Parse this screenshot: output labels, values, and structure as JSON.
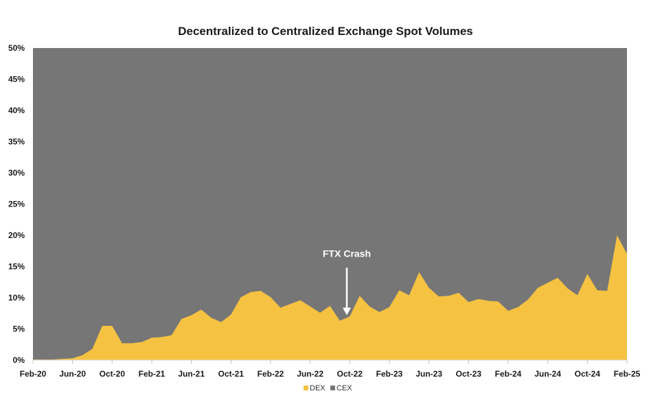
{
  "chart_data": {
    "type": "area",
    "title": "Decentralized to Centralized Exchange Spot Volumes",
    "xlabel": "",
    "ylabel": "",
    "ylim": [
      0,
      50
    ],
    "y_ticks": [
      "0%",
      "5%",
      "10%",
      "15%",
      "20%",
      "25%",
      "30%",
      "35%",
      "40%",
      "45%",
      "50%"
    ],
    "y_tick_values": [
      0,
      5,
      10,
      15,
      20,
      25,
      30,
      35,
      40,
      45,
      50
    ],
    "x_ticks": [
      "Feb-20",
      "Jun-20",
      "Oct-20",
      "Feb-21",
      "Jun-21",
      "Oct-21",
      "Feb-22",
      "Jun-22",
      "Oct-22",
      "Feb-23",
      "Jun-23",
      "Oct-23",
      "Feb-24",
      "Jun-24",
      "Oct-24",
      "Feb-25"
    ],
    "x_tick_index": [
      0,
      4,
      8,
      12,
      16,
      20,
      24,
      28,
      32,
      36,
      40,
      44,
      48,
      52,
      56,
      60
    ],
    "categories": [
      "Feb-20",
      "Mar-20",
      "Apr-20",
      "May-20",
      "Jun-20",
      "Jul-20",
      "Aug-20",
      "Sep-20",
      "Oct-20",
      "Nov-20",
      "Dec-20",
      "Jan-21",
      "Feb-21",
      "Mar-21",
      "Apr-21",
      "May-21",
      "Jun-21",
      "Jul-21",
      "Aug-21",
      "Sep-21",
      "Oct-21",
      "Nov-21",
      "Dec-21",
      "Jan-22",
      "Feb-22",
      "Mar-22",
      "Apr-22",
      "May-22",
      "Jun-22",
      "Jul-22",
      "Aug-22",
      "Sep-22",
      "Oct-22",
      "Nov-22",
      "Dec-22",
      "Jan-23",
      "Feb-23",
      "Mar-23",
      "Apr-23",
      "May-23",
      "Jun-23",
      "Jul-23",
      "Aug-23",
      "Sep-23",
      "Oct-23",
      "Nov-23",
      "Dec-23",
      "Jan-24",
      "Feb-24",
      "Mar-24",
      "Apr-24",
      "May-24",
      "Jun-24",
      "Jul-24",
      "Aug-24",
      "Sep-24",
      "Oct-24",
      "Nov-24",
      "Dec-24",
      "Jan-25",
      "Feb-25"
    ],
    "series": [
      {
        "name": "DEX",
        "color": "#f5c242",
        "values": [
          0.1,
          0.1,
          0.1,
          0.2,
          0.3,
          0.8,
          1.8,
          5.5,
          5.5,
          2.7,
          2.7,
          2.9,
          3.6,
          3.7,
          4.0,
          6.6,
          7.2,
          8.1,
          6.8,
          6.1,
          7.3,
          10.1,
          10.9,
          11.1,
          10.1,
          8.4,
          9.0,
          9.6,
          8.6,
          7.6,
          8.7,
          6.3,
          7.0,
          10.3,
          8.6,
          7.7,
          8.5,
          11.2,
          10.4,
          14.1,
          11.6,
          10.2,
          10.3,
          10.8,
          9.3,
          9.8,
          9.5,
          9.4,
          7.9,
          8.5,
          9.7,
          11.6,
          12.4,
          13.2,
          11.5,
          10.4,
          13.8,
          11.2,
          11.1,
          20.0,
          17.0
        ]
      },
      {
        "name": "CEX",
        "color": "#767676",
        "values_note": "remainder to 50%"
      }
    ],
    "annotations": [
      {
        "text": "FTX Crash",
        "x_index": 31.7,
        "arrow_from_y": 14.8,
        "arrow_to_y": 7.2
      }
    ],
    "legend": {
      "position": "bottom-center",
      "entries": [
        "DEX",
        "CEX"
      ]
    }
  },
  "colors": {
    "dex": "#f5c242",
    "cex": "#767676",
    "text": "#1a1a1a",
    "arrow": "#ffffff"
  }
}
